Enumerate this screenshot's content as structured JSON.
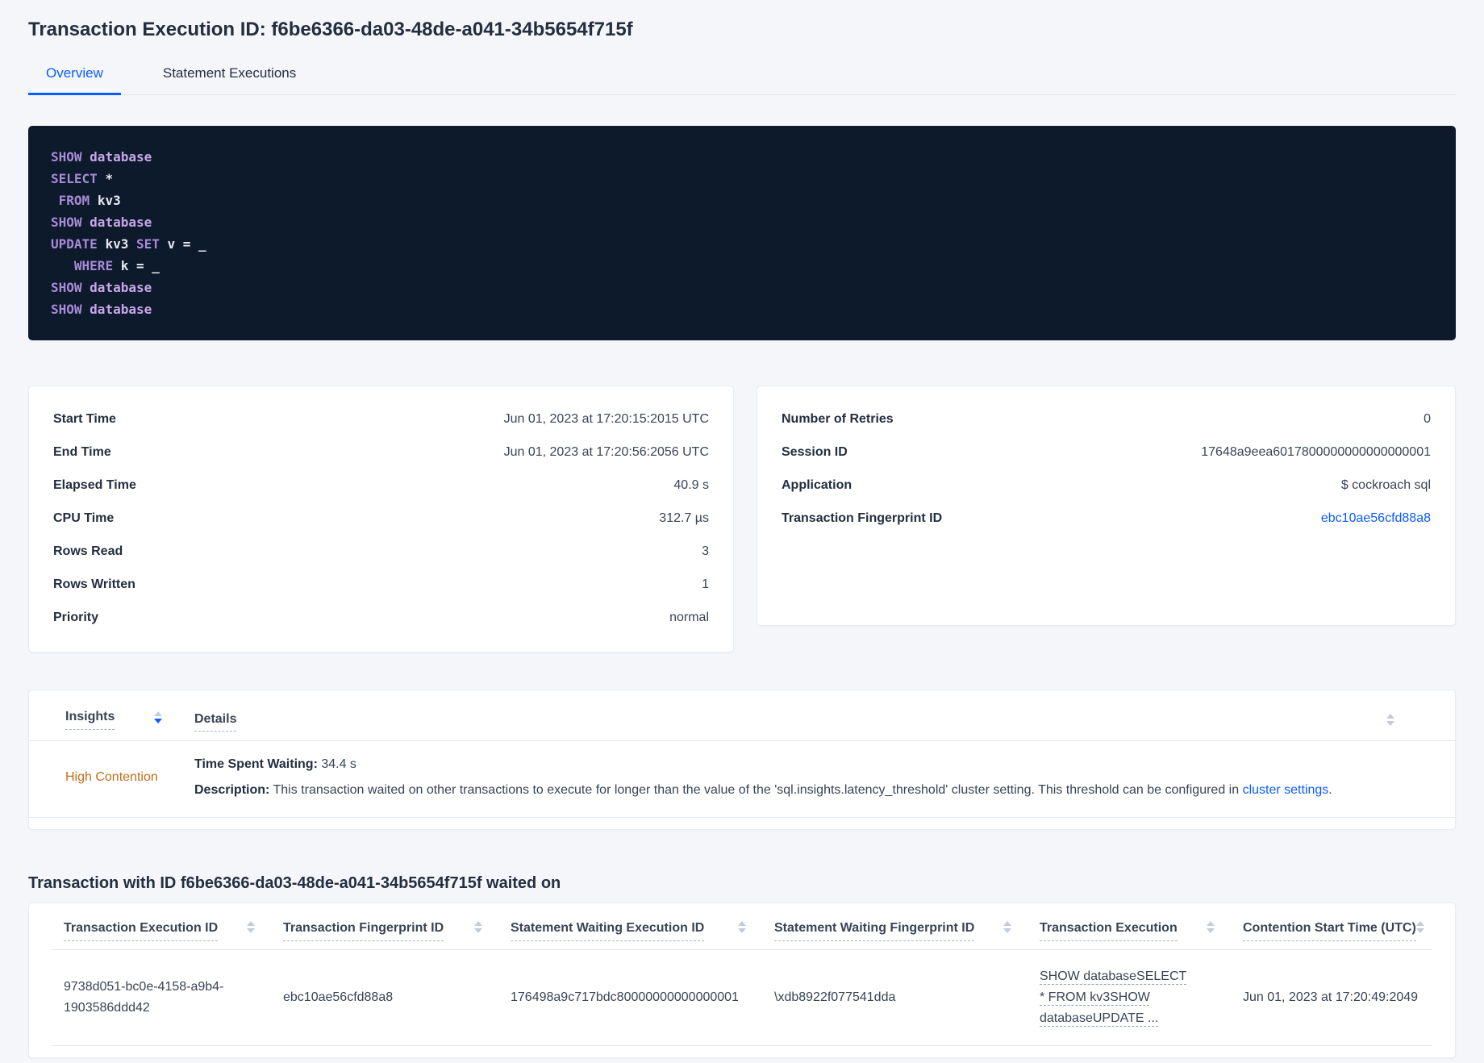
{
  "page": {
    "title": "Transaction Execution ID: f6be6366-da03-48de-a041-34b5654f715f"
  },
  "tabs": [
    {
      "label": "Overview",
      "active": true
    },
    {
      "label": "Statement Executions",
      "active": false
    }
  ],
  "sql_box": {
    "lines": [
      [
        {
          "text": "SHOW ",
          "type": "keyword"
        },
        {
          "text": "database",
          "type": "keyword2"
        }
      ],
      [
        {
          "text": "SELECT ",
          "type": "keyword"
        },
        {
          "text": "*",
          "type": "plain"
        }
      ],
      [
        {
          "text": " ",
          "type": "plain"
        },
        {
          "text": "FROM ",
          "type": "keyword"
        },
        {
          "text": "kv3",
          "type": "plain"
        }
      ],
      [
        {
          "text": "SHOW ",
          "type": "keyword"
        },
        {
          "text": "database",
          "type": "keyword2"
        }
      ],
      [
        {
          "text": "UPDATE ",
          "type": "keyword"
        },
        {
          "text": "kv3 ",
          "type": "plain"
        },
        {
          "text": "SET ",
          "type": "keyword"
        },
        {
          "text": "v = _",
          "type": "plain"
        }
      ],
      [
        {
          "text": "   ",
          "type": "plain"
        },
        {
          "text": "WHERE ",
          "type": "keyword"
        },
        {
          "text": "k = _",
          "type": "plain"
        }
      ],
      [
        {
          "text": "SHOW ",
          "type": "keyword"
        },
        {
          "text": "database",
          "type": "keyword2"
        }
      ],
      [
        {
          "text": "SHOW ",
          "type": "keyword"
        },
        {
          "text": "database",
          "type": "keyword2"
        }
      ]
    ]
  },
  "stats_left": {
    "rows": [
      {
        "label": "Start Time",
        "value": "Jun 01, 2023 at 17:20:15:2015 UTC"
      },
      {
        "label": "End Time",
        "value": "Jun 01, 2023 at 17:20:56:2056 UTC"
      },
      {
        "label": "Elapsed Time",
        "value": "40.9 s"
      },
      {
        "label": "CPU Time",
        "value": "312.7 µs"
      },
      {
        "label": "Rows Read",
        "value": "3"
      },
      {
        "label": "Rows Written",
        "value": "1"
      },
      {
        "label": "Priority",
        "value": "normal"
      }
    ]
  },
  "stats_right": {
    "rows": [
      {
        "label": "Number of Retries",
        "value": "0"
      },
      {
        "label": "Session ID",
        "value": "17648a9eea6017800000000000000001"
      },
      {
        "label": "Application",
        "value": "$ cockroach sql"
      },
      {
        "label": "Transaction Fingerprint ID",
        "value": "ebc10ae56cfd88a8"
      }
    ]
  },
  "insights": {
    "columns": {
      "insights": "Insights",
      "details": "Details"
    },
    "row": {
      "insight": "High Contention",
      "waiting_label": "Time Spent Waiting:",
      "waiting_value": "34.4 s",
      "description_label": "Description:",
      "description_text": "This transaction waited on other transactions to execute for longer than the value of the 'sql.insights.latency_threshold' cluster setting. This threshold can be configured in",
      "description_link": "cluster settings",
      "description_period": "."
    }
  },
  "waited_on": {
    "title": "Transaction with ID f6be6366-da03-48de-a041-34b5654f715f waited on",
    "columns": [
      "Transaction Execution ID",
      "Transaction Fingerprint ID",
      "Statement Waiting Execution ID",
      "Statement Waiting Fingerprint ID",
      "Transaction Execution",
      "Contention Start Time (UTC)"
    ],
    "row": {
      "transaction_execution_id": "9738d051-bc0e-4158-a9b4-1903586ddd42",
      "transaction_fingerprint_id": "ebc10ae56cfd88a8",
      "statement_waiting_execution_id": "176498a9c717bdc80000000000000001",
      "statement_waiting_fingerprint_id": "\\xdb8922f077541dda",
      "transaction_execution": "SHOW databaseSELECT * FROM kv3SHOW databaseUPDATE ...",
      "contention_start_time": "Jun 01, 2023 at 17:20:49:2049"
    }
  },
  "colors": {
    "accent_blue": "#0b5cff",
    "page_bg": "#f4f6fa",
    "sql_bg": "#0d1a2b",
    "insight_orange": "#c06e18"
  }
}
